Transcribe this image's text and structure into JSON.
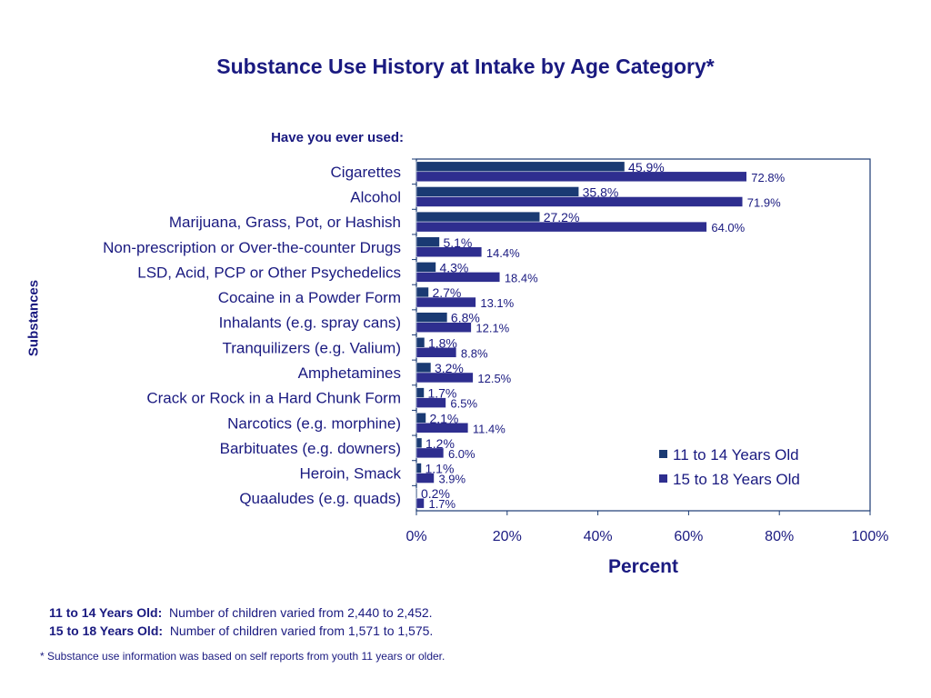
{
  "page": {
    "title": "Substance Use History at Intake by Age Category*",
    "subtitle": "Have you ever used:",
    "notes": [
      {
        "label": "11 to 14 Years Old:",
        "text": "Number of children varied from 2,440 to 2,452."
      },
      {
        "label": "15 to 18 Years Old:",
        "text": "Number of children varied from 1,571 to 1,575."
      }
    ],
    "footnote": "* Substance use information was based on self reports from youth 11 years or older."
  },
  "chart_data": {
    "type": "bar",
    "orientation": "horizontal",
    "title": "Substance Use History at Intake by Age Category*",
    "subtitle": "Have you ever used:",
    "xlabel": "Percent",
    "ylabel": "Substances",
    "xlim": [
      0,
      100
    ],
    "xticks": [
      "0%",
      "20%",
      "40%",
      "60%",
      "80%",
      "100%"
    ],
    "categories": [
      "Cigarettes",
      "Alcohol",
      "Marijuana, Grass, Pot, or Hashish",
      "Non-prescription or Over-the-counter Drugs",
      "LSD, Acid, PCP or Other Psychedelics",
      "Cocaine in a Powder Form",
      "Inhalants (e.g. spray cans)",
      "Tranquilizers (e.g. Valium)",
      "Amphetamines",
      "Crack or Rock in a Hard Chunk Form",
      "Narcotics (e.g. morphine)",
      "Barbituates (e.g. downers)",
      "Heroin, Smack",
      "Quaaludes (e.g. quads)"
    ],
    "series": [
      {
        "name": "11 to 14 Years Old",
        "color": "#1a3a73",
        "values": [
          45.9,
          35.8,
          27.2,
          5.1,
          4.3,
          2.7,
          6.8,
          1.8,
          3.2,
          1.7,
          2.1,
          1.2,
          1.1,
          0.2
        ],
        "labels": [
          "45.9%",
          "35.8%",
          "27.2%",
          "5.1%",
          "4.3%",
          "2.7%",
          "6.8%",
          "1.8%",
          "3.2%",
          "1.7%",
          "2.1%",
          "1.2%",
          "1.1%",
          "0.2%"
        ]
      },
      {
        "name": "15 to 18 Years Old",
        "color": "#2e2e8f",
        "values": [
          72.8,
          71.9,
          64.0,
          14.4,
          18.4,
          13.1,
          12.1,
          8.8,
          12.5,
          6.5,
          11.4,
          6.0,
          3.9,
          1.7
        ],
        "labels": [
          "72.8%",
          "71.9%",
          "64.0%",
          "14.4%",
          "18.4%",
          "13.1%",
          "12.1%",
          "8.8%",
          "12.5%",
          "6.5%",
          "11.4%",
          "6.0%",
          "3.9%",
          "1.7%"
        ]
      }
    ],
    "legend_position": "bottom-right",
    "grid": false
  }
}
